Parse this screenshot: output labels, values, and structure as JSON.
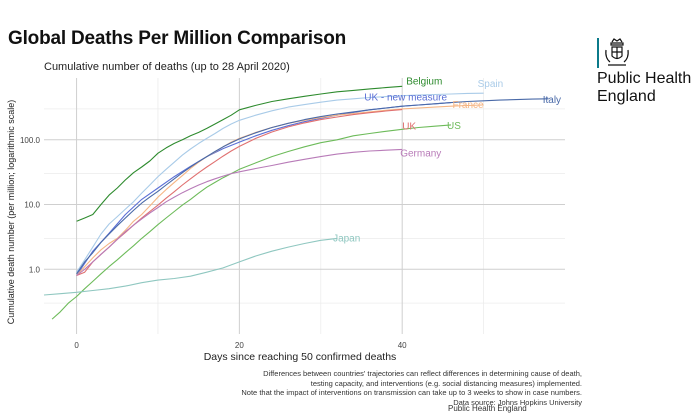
{
  "header": {
    "title": "Global Deaths Per Million Comparison"
  },
  "logo": {
    "line1": "Public Health",
    "line2": "England",
    "accent_color": "#0b7a8a"
  },
  "footnote": {
    "lines": [
      "Differences between countries' trajectories can reflect differences in determining cause of death,",
      "testing capacity, and interventions (e.g. social distancing measures) implemented.",
      "Note that the impact of interventions on transmission can take up to 3 weeks to show in case numbers.",
      "Data source: Johns Hopkins University"
    ],
    "credit": "Public Health England"
  },
  "chart_data": {
    "type": "line",
    "title": "Cumulative number of deaths (up to 28 April 2020)",
    "xlabel": "Days since reaching 50 confirmed deaths",
    "ylabel": "Cumulative death number (per million; logarithmic scale)",
    "y_scale": "log",
    "xlim": [
      -4,
      60
    ],
    "ylim": [
      0.1,
      900
    ],
    "x_ticks": [
      0,
      20,
      40
    ],
    "x_tick_labels": [
      "0",
      "20",
      "40"
    ],
    "y_ticks": [
      1,
      10,
      100
    ],
    "y_tick_labels": [
      "1.0",
      "10.0",
      "100.0"
    ],
    "grid": true,
    "legend": "direct labels at line ends",
    "series": [
      {
        "name": "Belgium",
        "color": "#2e8b2e",
        "x": [
          0,
          1,
          2,
          3,
          4,
          5,
          6,
          7,
          8,
          9,
          10,
          11,
          12,
          13,
          14,
          15,
          16,
          17,
          18,
          19,
          20,
          22,
          24,
          26,
          28,
          30,
          32,
          34,
          36,
          38,
          40
        ],
        "y": [
          5.5,
          6.2,
          7,
          10,
          14,
          18,
          24,
          31,
          38,
          47,
          62,
          75,
          88,
          100,
          115,
          130,
          150,
          175,
          205,
          240,
          290,
          340,
          390,
          430,
          470,
          510,
          550,
          580,
          610,
          640,
          670
        ]
      },
      {
        "name": "Spain",
        "color": "#a9cbe8",
        "x": [
          0,
          1,
          2,
          3,
          4,
          5,
          6,
          7,
          8,
          9,
          10,
          11,
          12,
          13,
          14,
          15,
          16,
          17,
          18,
          19,
          20,
          22,
          24,
          26,
          28,
          30,
          32,
          34,
          36,
          38,
          40,
          42,
          44,
          46,
          48,
          50
        ],
        "y": [
          0.9,
          1.4,
          2.2,
          3.5,
          5,
          6.5,
          8.5,
          11,
          15,
          20,
          27,
          35,
          45,
          58,
          72,
          88,
          105,
          125,
          150,
          175,
          200,
          240,
          280,
          320,
          350,
          380,
          410,
          430,
          450,
          465,
          480,
          490,
          500,
          510,
          520,
          525
        ]
      },
      {
        "name": "UK - new measure",
        "color": "#5b6fd6",
        "x": [
          0,
          2,
          4,
          6,
          8,
          10,
          12,
          14,
          16,
          18,
          20,
          22,
          24,
          26,
          28,
          30,
          32,
          34,
          36,
          38,
          40,
          42,
          44,
          46
        ],
        "y": [
          0.8,
          1.9,
          3.6,
          7,
          12,
          18,
          27,
          39,
          55,
          73,
          92,
          115,
          140,
          165,
          190,
          215,
          240,
          265,
          290,
          310,
          330,
          345,
          360,
          375
        ]
      },
      {
        "name": "France",
        "color": "#f5b584",
        "x": [
          0,
          1,
          2,
          3,
          4,
          5,
          6,
          7,
          8,
          9,
          10,
          11,
          12,
          13,
          14,
          15,
          16,
          17,
          18,
          19,
          20,
          22,
          24,
          26,
          28,
          30,
          32,
          34,
          36,
          38,
          40,
          42,
          44,
          46,
          48,
          50
        ],
        "y": [
          0.8,
          1.1,
          1.5,
          2,
          2.5,
          3,
          4,
          5.5,
          7,
          9.5,
          13,
          17,
          22,
          28,
          36,
          45,
          55,
          65,
          78,
          92,
          105,
          130,
          155,
          180,
          200,
          220,
          240,
          255,
          270,
          285,
          300,
          310,
          320,
          330,
          338,
          345
        ]
      },
      {
        "name": "Italy",
        "color": "#4a6aa8",
        "x": [
          0,
          1,
          2,
          3,
          4,
          5,
          6,
          7,
          8,
          9,
          10,
          11,
          12,
          13,
          14,
          15,
          16,
          17,
          18,
          19,
          20,
          22,
          24,
          26,
          28,
          30,
          32,
          34,
          36,
          38,
          40,
          42,
          44,
          46,
          48,
          50,
          52,
          54,
          56,
          58
        ],
        "y": [
          0.85,
          1.3,
          1.8,
          2.6,
          3.5,
          4.7,
          6.2,
          8.1,
          10.5,
          13,
          16,
          20,
          25,
          31,
          38,
          46,
          55,
          66,
          78,
          90,
          103,
          128,
          155,
          180,
          205,
          228,
          250,
          270,
          290,
          310,
          330,
          345,
          360,
          375,
          390,
          400,
          410,
          418,
          425,
          430
        ]
      },
      {
        "name": "UK",
        "color": "#e07070",
        "x": [
          0,
          1,
          2,
          3,
          4,
          5,
          6,
          7,
          8,
          9,
          10,
          11,
          12,
          13,
          14,
          15,
          16,
          17,
          18,
          19,
          20,
          22,
          24,
          26,
          28,
          30,
          32,
          34,
          36,
          38,
          40
        ],
        "y": [
          0.8,
          0.9,
          1.3,
          1.7,
          2.2,
          2.9,
          3.7,
          4.8,
          6.2,
          7.8,
          9.8,
          12.5,
          15.8,
          20,
          25,
          31,
          38,
          46,
          56,
          67,
          79,
          105,
          132,
          158,
          182,
          205,
          225,
          245,
          262,
          278,
          292
        ]
      },
      {
        "name": "US",
        "color": "#6dbb5a",
        "x": [
          -3,
          -2,
          -1,
          0,
          1,
          2,
          3,
          4,
          5,
          6,
          7,
          8,
          9,
          10,
          11,
          12,
          13,
          14,
          15,
          16,
          17,
          18,
          19,
          20,
          22,
          24,
          26,
          28,
          30,
          32,
          34,
          36,
          38,
          40,
          42,
          44,
          46
        ],
        "y": [
          0.17,
          0.22,
          0.3,
          0.38,
          0.5,
          0.65,
          0.85,
          1.1,
          1.4,
          1.8,
          2.3,
          3,
          3.8,
          4.9,
          6.2,
          7.8,
          9.8,
          12,
          15,
          18.5,
          22,
          26,
          30,
          35,
          44,
          55,
          66,
          78,
          90,
          100,
          115,
          125,
          135,
          145,
          155,
          162,
          170
        ]
      },
      {
        "name": "Germany",
        "color": "#b87bb8",
        "x": [
          0,
          1,
          2,
          3,
          4,
          5,
          6,
          7,
          8,
          9,
          10,
          11,
          12,
          13,
          14,
          15,
          16,
          17,
          18,
          19,
          20,
          22,
          24,
          26,
          28,
          30,
          32,
          34,
          36,
          38,
          40
        ],
        "y": [
          0.8,
          1,
          1.3,
          1.7,
          2.2,
          2.9,
          3.8,
          4.8,
          6,
          7.4,
          9,
          11,
          13,
          15.2,
          17.5,
          20,
          22.5,
          25,
          27.5,
          30,
          32,
          36,
          40,
          45,
          50,
          55,
          60,
          64,
          67,
          69,
          71
        ]
      },
      {
        "name": "Japan",
        "color": "#8fc7c0",
        "x": [
          -4,
          -2,
          0,
          2,
          4,
          6,
          8,
          10,
          12,
          14,
          16,
          18,
          20,
          22,
          24,
          26,
          28,
          30,
          32
        ],
        "y": [
          0.4,
          0.42,
          0.44,
          0.47,
          0.5,
          0.55,
          0.62,
          0.68,
          0.72,
          0.78,
          0.9,
          1.05,
          1.3,
          1.6,
          1.9,
          2.2,
          2.5,
          2.8,
          3
        ]
      }
    ]
  }
}
